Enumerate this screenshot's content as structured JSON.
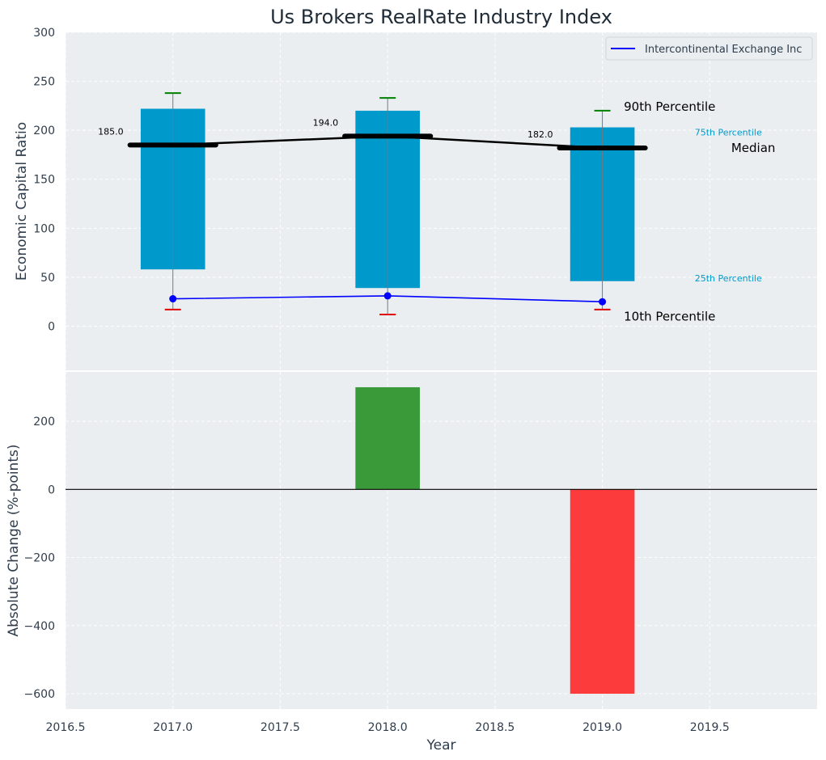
{
  "chart_data": [
    {
      "type": "bar",
      "title": "Us Brokers RealRate Industry Index",
      "xlabel": "",
      "ylabel": "Economic Capital Ratio",
      "xlim": [
        2016.5,
        2020.0
      ],
      "ylim": [
        -45,
        300
      ],
      "x_ticks": [
        "2016.5",
        "2017.0",
        "2017.5",
        "2018.0",
        "2018.5",
        "2019.0",
        "2019.5"
      ],
      "y_ticks": [
        "0",
        "50",
        "100",
        "150",
        "200",
        "250",
        "300"
      ],
      "grid": true,
      "legend": {
        "placement": "top-right",
        "entries": [
          "Intercontinental Exchange Inc"
        ]
      },
      "years": [
        2017,
        2018,
        2019
      ],
      "p10": [
        17,
        12,
        17
      ],
      "p25": [
        58,
        39,
        46
      ],
      "median": [
        185.0,
        194.0,
        182.0
      ],
      "p75": [
        222,
        220,
        203
      ],
      "p90": [
        238,
        233,
        220
      ],
      "median_labels": [
        "185.0",
        "194.0",
        "182.0"
      ],
      "series": [
        {
          "name": "Intercontinental Exchange Inc",
          "x": [
            2017,
            2018,
            2019
          ],
          "values": [
            28,
            31,
            25
          ]
        }
      ],
      "annotations": {
        "p90": "90th Percentile",
        "p75": "75th Percentile",
        "median": "Median",
        "p25": "25th Percentile",
        "p10": "10th Percentile"
      },
      "colors": {
        "box": "#0099cc",
        "median": "#000000",
        "whisker_top": "#008000",
        "whisker_bottom": "#e00000",
        "company": "#0000ff",
        "background": "#eaeef0"
      }
    },
    {
      "type": "bar",
      "title": "",
      "xlabel": "Year",
      "ylabel": "Absolute Change (%-points)",
      "xlim": [
        2016.5,
        2020.0
      ],
      "ylim": [
        -645,
        345
      ],
      "x_ticks": [
        "2016.5",
        "2017.0",
        "2017.5",
        "2018.0",
        "2018.5",
        "2019.0",
        "2019.5"
      ],
      "y_ticks": [
        "−600",
        "−400",
        "−200",
        "0",
        "200"
      ],
      "grid": true,
      "x": [
        2018,
        2019
      ],
      "values": [
        300,
        -600
      ],
      "colors": {
        "positive": "#3a9a3a",
        "negative": "#fc3c3c",
        "zero_line": "#000000"
      }
    }
  ]
}
